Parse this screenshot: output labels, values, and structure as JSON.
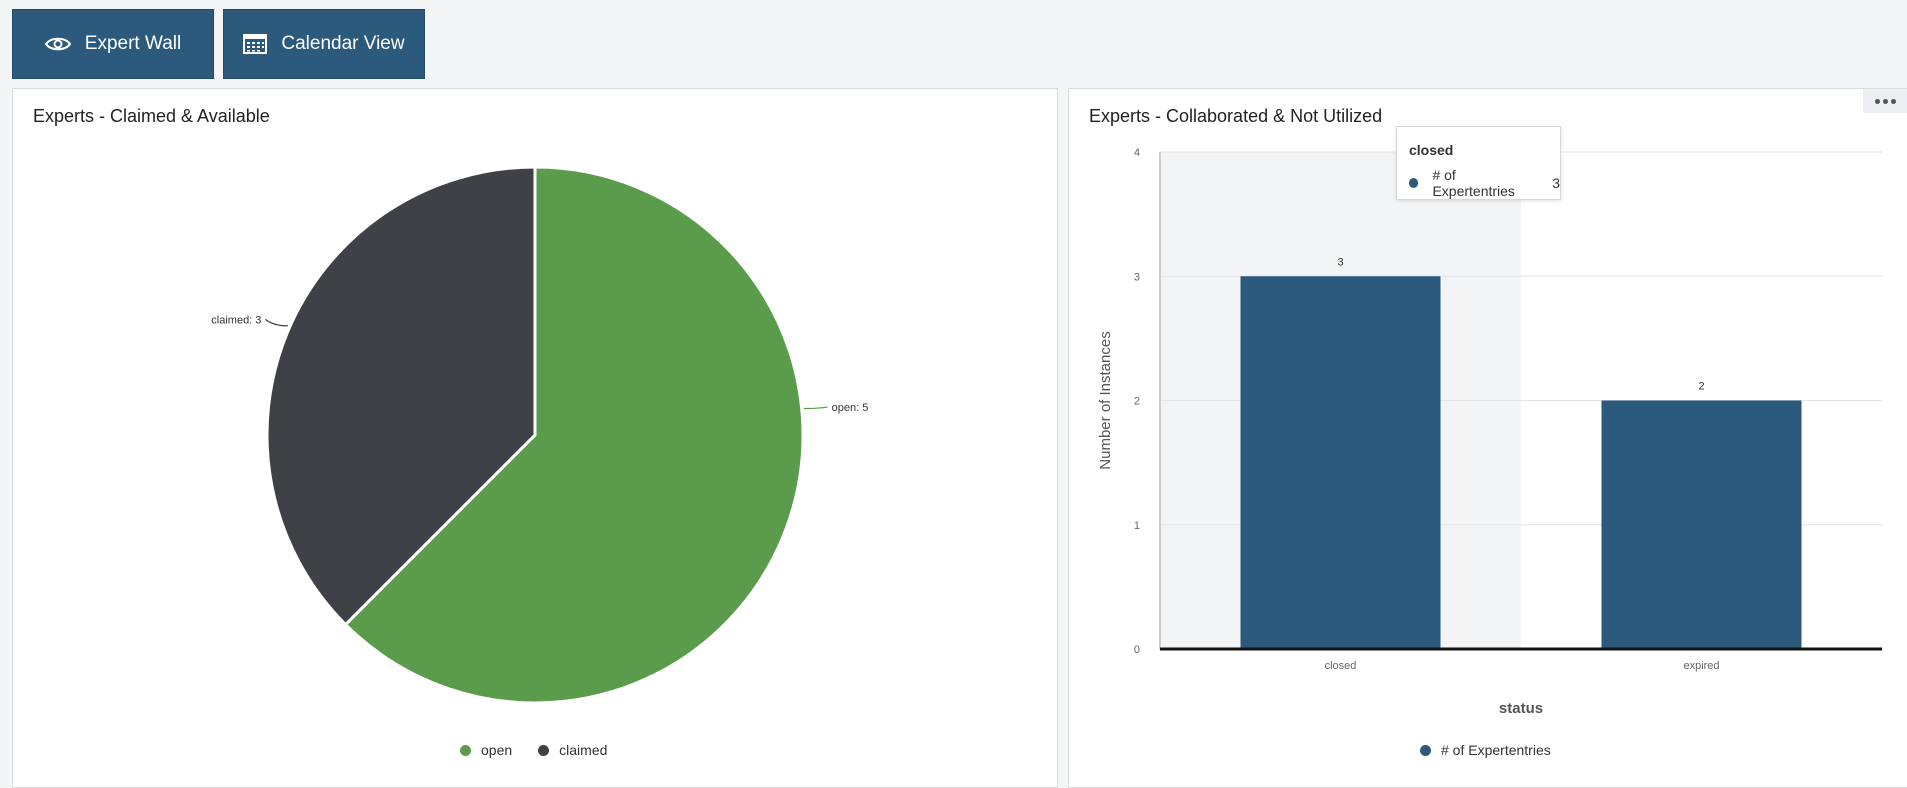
{
  "toolbar": {
    "buttons": [
      {
        "label": "Expert Wall",
        "icon": "eye-icon"
      },
      {
        "label": "Calendar View",
        "icon": "calendar-icon"
      }
    ]
  },
  "colors": {
    "accent": "#2c5a7d",
    "open": "#5a9c4b",
    "claimed": "#404047"
  },
  "pie_panel": {
    "title": "Experts - Claimed & Available"
  },
  "bar_panel": {
    "title": "Experts - Collaborated & Not Utilized",
    "tooltip": {
      "title": "closed",
      "series": "# of Expertentries",
      "value": "3"
    }
  },
  "chart_data": [
    {
      "type": "pie",
      "title": "Experts - Claimed & Available",
      "labels": [
        "open",
        "claimed"
      ],
      "values": [
        5,
        3
      ],
      "data_labels": [
        "open: 5",
        "claimed: 3"
      ],
      "legend": [
        "open",
        "claimed"
      ],
      "legend_position": "bottom-center"
    },
    {
      "type": "bar",
      "title": "Experts - Collaborated & Not Utilized",
      "categories": [
        "closed",
        "expired"
      ],
      "series": [
        {
          "name": "# of Expertentries",
          "values": [
            3,
            2
          ]
        }
      ],
      "data_labels": [
        "3",
        "2"
      ],
      "xlabel": "status",
      "ylabel": "Number of Instances",
      "ylim": [
        0,
        4
      ],
      "yticks": [
        "0",
        "1",
        "2",
        "3",
        "4"
      ],
      "grid": true,
      "legend_position": "bottom-center"
    }
  ]
}
